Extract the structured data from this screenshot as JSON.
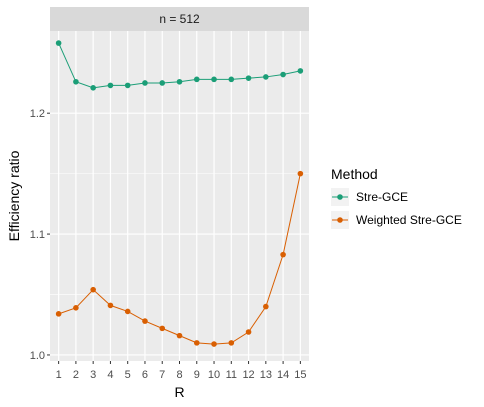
{
  "chart_data": {
    "type": "line",
    "facet_label": "n = 512",
    "xlabel": "R",
    "ylabel": "Efficiency ratio",
    "x": [
      1,
      2,
      3,
      4,
      5,
      6,
      7,
      8,
      9,
      10,
      11,
      12,
      13,
      14,
      15
    ],
    "xlim": [
      0.5,
      15.5
    ],
    "ylim": [
      0.995,
      1.268
    ],
    "y_ticks": [
      1.0,
      1.1,
      1.2
    ],
    "y_tick_labels": [
      "1.0",
      "1.1",
      "1.2"
    ],
    "grid": true,
    "legend": {
      "title": "Method",
      "position": "right"
    },
    "series": [
      {
        "name": "Stre-GCE",
        "color": "#1b9e77",
        "values": [
          1.258,
          1.226,
          1.221,
          1.223,
          1.223,
          1.225,
          1.225,
          1.226,
          1.228,
          1.228,
          1.228,
          1.229,
          1.23,
          1.232,
          1.235
        ]
      },
      {
        "name": "Weighted Stre-GCE",
        "color": "#d95f02",
        "values": [
          1.034,
          1.039,
          1.054,
          1.041,
          1.036,
          1.028,
          1.022,
          1.016,
          1.01,
          1.009,
          1.01,
          1.019,
          1.04,
          1.083,
          1.15
        ]
      }
    ]
  }
}
